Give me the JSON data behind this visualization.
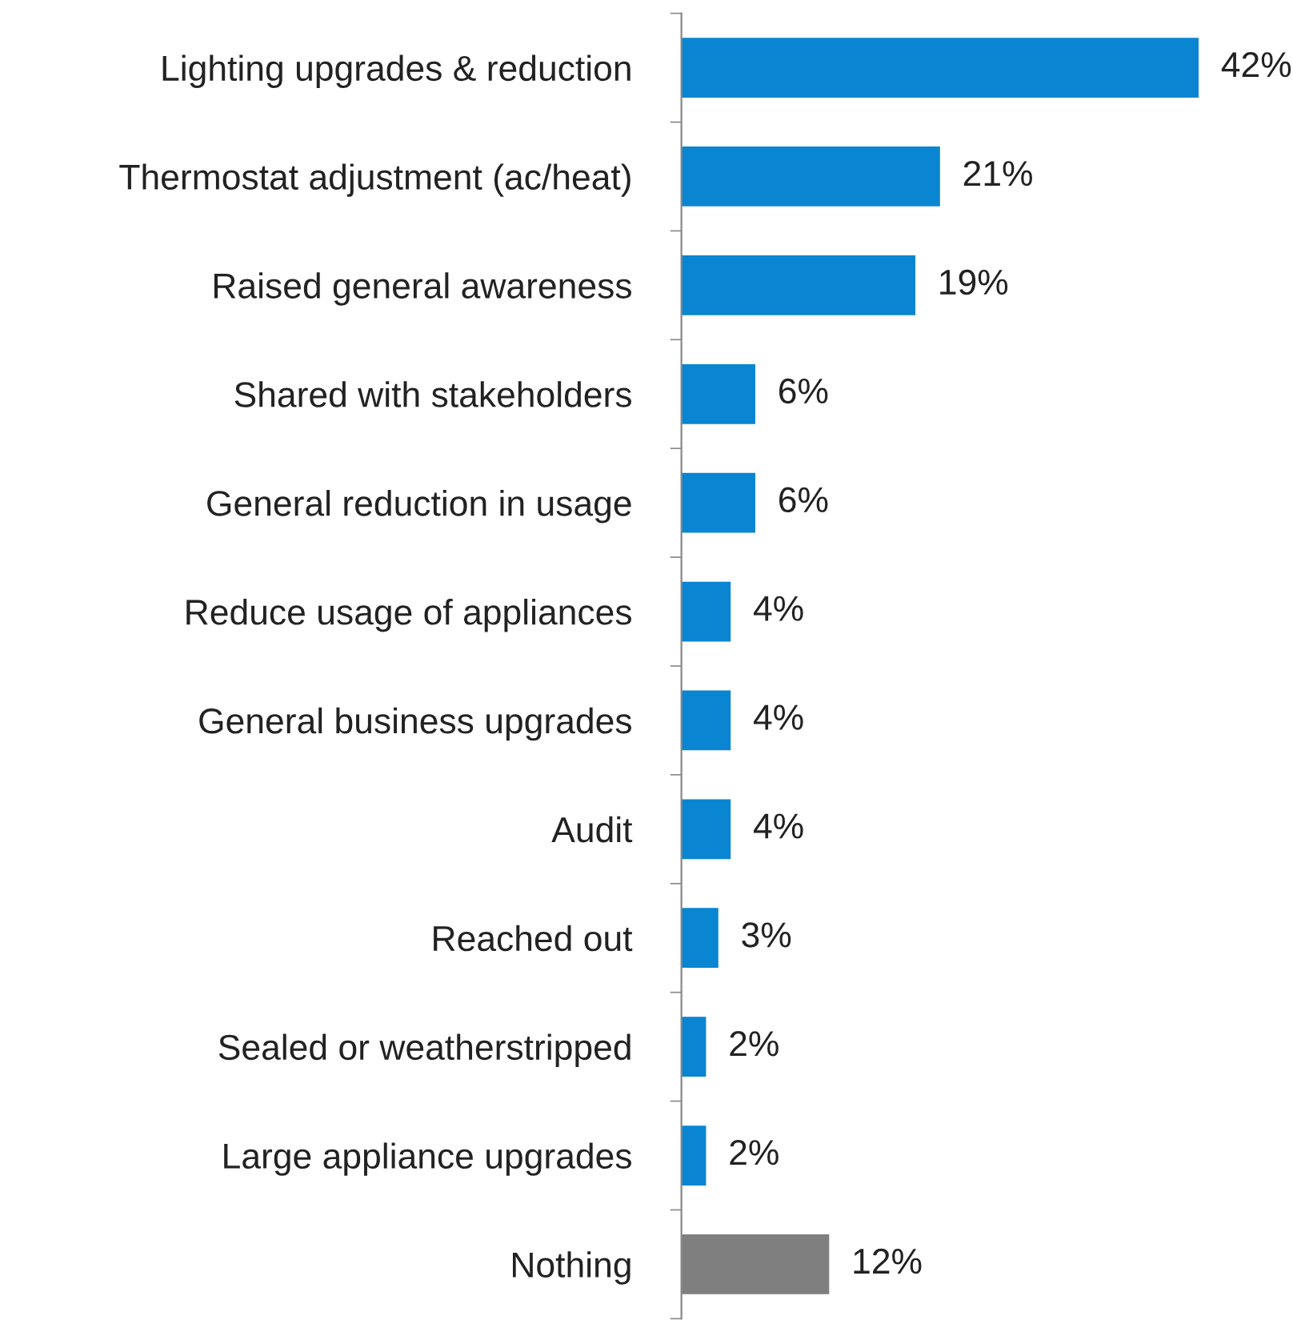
{
  "chart_data": {
    "type": "bar",
    "orientation": "horizontal",
    "categories": [
      "Lighting upgrades & reduction",
      "Thermostat adjustment (ac/heat)",
      "Raised general awareness",
      "Shared with stakeholders",
      "General reduction in usage",
      "Reduce usage of appliances",
      "General business upgrades",
      "Audit",
      "Reached out",
      "Sealed or weatherstripped",
      "Large appliance upgrades",
      "Nothing"
    ],
    "values": [
      42,
      21,
      19,
      6,
      6,
      4,
      4,
      4,
      3,
      2,
      2,
      12
    ],
    "colors": [
      "#0a85d1",
      "#0a85d1",
      "#0a85d1",
      "#0a85d1",
      "#0a85d1",
      "#0a85d1",
      "#0a85d1",
      "#0a85d1",
      "#0a85d1",
      "#0a85d1",
      "#0a85d1",
      "#7f7f7f"
    ],
    "value_labels": [
      "42%",
      "21%",
      "19%",
      "6%",
      "6%",
      "4%",
      "4%",
      "4%",
      "3%",
      "2%",
      "2%",
      "12%"
    ],
    "tick_labels": "y",
    "grid": false,
    "legend": false
  }
}
